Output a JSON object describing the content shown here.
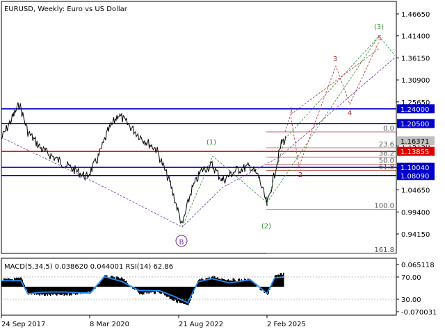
{
  "header": {
    "symbol": "EURUSD",
    "timeframe": "Weekly",
    "description": "Euro vs US Dollar"
  },
  "price_axis": {
    "ticks": [
      "1.46650",
      "1.41400",
      "1.36150",
      "1.30900",
      "1.25650",
      "1.20400",
      "1.15150",
      "1.09900",
      "1.04650",
      "0.99400",
      "0.94150"
    ]
  },
  "levels": [
    {
      "label": "1.24000",
      "price": 1.24,
      "color": "#0000cc"
    },
    {
      "label": "1.20500",
      "price": 1.205,
      "color": "#0000cc"
    },
    {
      "label": "1.16371",
      "price": 1.16371,
      "color": "#c0c0c0"
    },
    {
      "label": "1.13855",
      "price": 1.13855,
      "color": "#dd0000"
    },
    {
      "label": "1.10040",
      "price": 1.1004,
      "color": "#0000cc"
    },
    {
      "label": "1.08090",
      "price": 1.0809,
      "color": "#0000cc"
    }
  ],
  "fibonacci": [
    {
      "label": "0.0",
      "price": 1.185
    },
    {
      "label": "23.6",
      "price": 1.147
    },
    {
      "label": "38.2",
      "price": 1.125
    },
    {
      "label": "50.0",
      "price": 1.108
    },
    {
      "label": "61.8",
      "price": 1.093
    },
    {
      "label": "100.0",
      "price": 1.0
    },
    {
      "label": "161.8",
      "price": 0.895
    }
  ],
  "wave_labels": {
    "w1_paren": "(1)",
    "w2_paren": "(2)",
    "w3_paren": "(3)",
    "B": "B",
    "r1": "1",
    "r2": "2",
    "r3": "3",
    "r4": "4",
    "r5": "5"
  },
  "indicator": {
    "label": "MACD(5,34,5) 0.038620 0.044001 RSI(14) 62.86",
    "ticks": [
      "0.065118",
      "70.00",
      "30.00",
      "-0.070031"
    ]
  },
  "time_axis": {
    "labels": [
      "24 Sep 2017",
      "8 Mar 2020",
      "21 Aug 2022",
      "2 Feb 2025"
    ]
  },
  "colors": {
    "bullish_wave": "#2e8b2e",
    "bearish_wave": "#b03030",
    "corrective_wave": "#7030a0",
    "rsi_line": "#1e90ff",
    "macd_hist": "#000000"
  }
}
